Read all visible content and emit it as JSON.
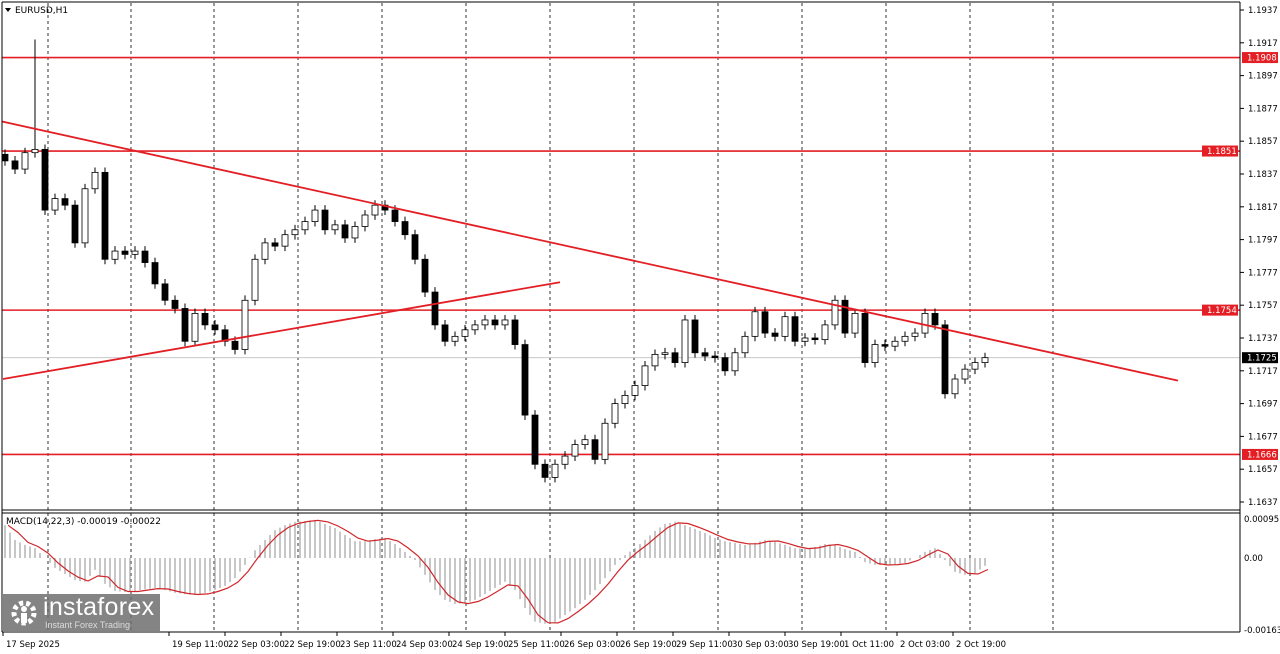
{
  "window": {
    "title": "EURUSD,H1"
  },
  "indicator": {
    "label": "MACD(14,22,3) -0.00019 -0.00022"
  },
  "logo": {
    "brand": "instaforex",
    "tagline": "Instant Forex Trading",
    "icon": "gear-person-icon"
  },
  "colors": {
    "levels": "#e31e24",
    "candles": "#000000",
    "histogram": "#b4b4b4",
    "signal": "#d0262a",
    "current_price_tag": "#000000"
  },
  "chart_data": {
    "type": "candlestick",
    "symbol": "EURUSD",
    "timeframe": "H1",
    "ylim": [
      1.1627,
      1.1947
    ],
    "y_ticks": [
      "1.1937",
      "1.1917",
      "1.1897",
      "1.1877",
      "1.1857",
      "1.1837",
      "1.1817",
      "1.1797",
      "1.1777",
      "1.1757",
      "1.1737",
      "1.1717",
      "1.1697",
      "1.1677",
      "1.1657",
      "1.1637"
    ],
    "x_tick_labels": [
      "17 Sep 2025",
      "19 Sep 11:00",
      "22 Sep 03:00",
      "22 Sep 19:00",
      "23 Sep 11:00",
      "24 Sep 03:00",
      "24 Sep 19:00",
      "25 Sep 11:00",
      "26 Sep 03:00",
      "26 Sep 19:00",
      "29 Sep 11:00",
      "30 Sep 03:00",
      "30 Sep 19:00",
      "1 Oct 11:00",
      "2 Oct 03:00",
      "2 Oct 19:00"
    ],
    "closes": [
      1.1845,
      1.184,
      1.185,
      1.1852,
      1.1815,
      1.1822,
      1.1818,
      1.1795,
      1.1828,
      1.1838,
      1.1785,
      1.179,
      1.1788,
      1.179,
      1.1783,
      1.177,
      1.176,
      1.1755,
      1.1735,
      1.1752,
      1.1745,
      1.1742,
      1.1735,
      1.173,
      1.176,
      1.1785,
      1.1795,
      1.1793,
      1.18,
      1.1803,
      1.1808,
      1.1815,
      1.1803,
      1.1806,
      1.1798,
      1.1805,
      1.1812,
      1.1818,
      1.1815,
      1.1808,
      1.18,
      1.1785,
      1.1765,
      1.1745,
      1.1735,
      1.1738,
      1.1742,
      1.1745,
      1.1748,
      1.1745,
      1.1748,
      1.1733,
      1.169,
      1.166,
      1.1652,
      1.166,
      1.1665,
      1.1672,
      1.1675,
      1.1663,
      1.1685,
      1.1697,
      1.1702,
      1.1708,
      1.172,
      1.1727,
      1.1728,
      1.1722,
      1.1748,
      1.1728,
      1.1726,
      1.1725,
      1.1717,
      1.1728,
      1.1738,
      1.1753,
      1.174,
      1.1738,
      1.175,
      1.1735,
      1.1737,
      1.1736,
      1.1745,
      1.176,
      1.174,
      1.1752,
      1.1722,
      1.1733,
      1.1732,
      1.1735,
      1.1738,
      1.174,
      1.1752,
      1.1745,
      1.1703,
      1.1712,
      1.1718,
      1.1722,
      1.1725
    ],
    "spike_high": {
      "index": 3,
      "price": 1.1919
    },
    "current_price": "1.1725",
    "horizontal_levels": [
      "1.1908",
      "1.1851",
      "1.1754",
      "1.1666"
    ],
    "trendlines": [
      {
        "kind": "descending",
        "from": 1.1869,
        "to": 1.1711
      },
      {
        "kind": "ascending",
        "from": 1.1712,
        "to": 1.1771
      }
    ],
    "macd": {
      "ylim": [
        -0.00163,
        0.00095
      ],
      "y_ticks": [
        "0.00095",
        "0.00",
        "-0.00163"
      ],
      "histogram": [
        0.0008,
        0.00044,
        0.00032,
        0.00024,
        0.0,
        -0.00024,
        -0.00039,
        -0.00054,
        -0.00058,
        -0.00029,
        -0.00063,
        -0.0008,
        -0.00083,
        -0.0008,
        -0.00076,
        -0.00073,
        -0.00078,
        -0.00085,
        -0.00088,
        -0.0009,
        -0.00085,
        -0.00078,
        -0.00068,
        -0.00049,
        -0.00017,
        0.00019,
        0.00044,
        0.00068,
        0.0008,
        0.00088,
        0.0009,
        0.00093,
        0.00083,
        0.00073,
        0.00056,
        0.00041,
        0.00041,
        0.00046,
        0.00049,
        0.00034,
        0.00015,
        -5e-05,
        -0.00041,
        -0.00078,
        -0.00102,
        -0.00112,
        -0.0011,
        -0.00102,
        -0.00088,
        -0.00073,
        -0.00058,
        -0.00078,
        -0.00122,
        -0.00155,
        -0.0016,
        -0.00156,
        -0.00139,
        -0.00122,
        -0.00102,
        -0.00078,
        -0.00049,
        -0.00017,
        7e-05,
        0.00024,
        0.00044,
        0.00066,
        0.00083,
        0.00088,
        0.0008,
        0.00071,
        0.00061,
        0.00049,
        0.00041,
        0.00037,
        0.00032,
        0.00037,
        0.00044,
        0.00039,
        0.00032,
        0.00024,
        0.00022,
        0.00027,
        0.00034,
        0.00032,
        0.00022,
        0.00015,
        -0.0001,
        -0.00017,
        -0.00017,
        -0.00015,
        -0.00012,
        0.0,
        0.00015,
        0.00024,
        -5e-05,
        -0.00034,
        -0.00041,
        -0.00037,
        -0.00019
      ]
    }
  }
}
